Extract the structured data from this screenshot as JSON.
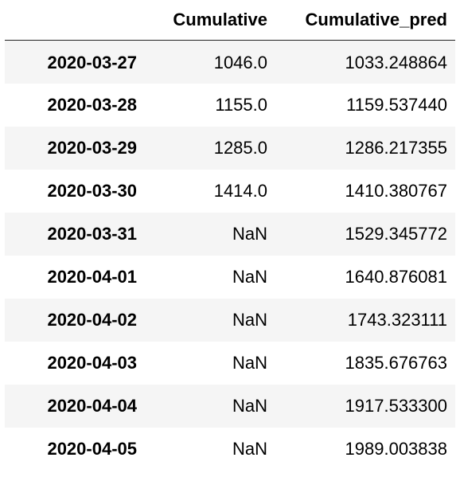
{
  "table": {
    "columns": [
      "",
      "Cumulative",
      "Cumulative_pred"
    ],
    "rows": [
      {
        "index": "2020-03-27",
        "cumulative": "1046.0",
        "cumulative_pred": "1033.248864"
      },
      {
        "index": "2020-03-28",
        "cumulative": "1155.0",
        "cumulative_pred": "1159.537440"
      },
      {
        "index": "2020-03-29",
        "cumulative": "1285.0",
        "cumulative_pred": "1286.217355"
      },
      {
        "index": "2020-03-30",
        "cumulative": "1414.0",
        "cumulative_pred": "1410.380767"
      },
      {
        "index": "2020-03-31",
        "cumulative": "NaN",
        "cumulative_pred": "1529.345772"
      },
      {
        "index": "2020-04-01",
        "cumulative": "NaN",
        "cumulative_pred": "1640.876081"
      },
      {
        "index": "2020-04-02",
        "cumulative": "NaN",
        "cumulative_pred": "1743.323111"
      },
      {
        "index": "2020-04-03",
        "cumulative": "NaN",
        "cumulative_pred": "1835.676763"
      },
      {
        "index": "2020-04-04",
        "cumulative": "NaN",
        "cumulative_pred": "1917.533300"
      },
      {
        "index": "2020-04-05",
        "cumulative": "NaN",
        "cumulative_pred": "1989.003838"
      }
    ]
  },
  "colors": {
    "stripe": "#f5f5f5",
    "background": "#ffffff",
    "header_rule": "#222222",
    "text": "#000000"
  }
}
